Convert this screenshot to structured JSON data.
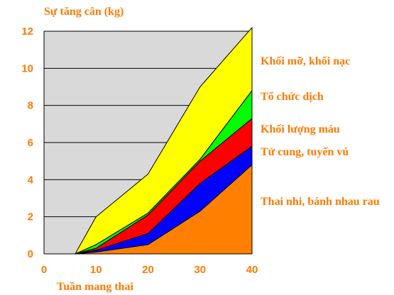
{
  "chart_data": {
    "type": "area",
    "stacked": true,
    "ylabel": "Sự tăng cân (kg)",
    "xlabel": "Tuần mang thai",
    "xlim": [
      0,
      40
    ],
    "ylim": [
      0,
      12
    ],
    "xticks": [
      "0",
      "10",
      "20",
      "30",
      "40"
    ],
    "yticks": [
      "0",
      "2",
      "4",
      "6",
      "8",
      "10",
      "12"
    ],
    "x": [
      5,
      6,
      10,
      20,
      30,
      40
    ],
    "plot_background": "#d9d9d9",
    "series": [
      {
        "name": "Thai nhi, bánh nhau rau",
        "color": "#ff8000",
        "values": [
          0,
          0,
          0.1,
          0.5,
          2.3,
          4.8
        ]
      },
      {
        "name": "Tử cung, tuyến vú",
        "color": "#0000ff",
        "values": [
          0,
          0,
          0.1,
          0.6,
          1.5,
          1.0
        ]
      },
      {
        "name": "Khối lượng máu",
        "color": "#ff0000",
        "values": [
          0,
          0,
          0.1,
          1.0,
          1.2,
          1.5
        ]
      },
      {
        "name": "Tổ chức dịch",
        "color": "#00ff00",
        "values": [
          0,
          0,
          0.2,
          0.1,
          0.1,
          1.5
        ]
      },
      {
        "name": "Khối mỡ, khối nạc",
        "color": "#ffff00",
        "values": [
          0,
          0,
          1.5,
          2.1,
          3.9,
          3.4
        ]
      }
    ]
  }
}
